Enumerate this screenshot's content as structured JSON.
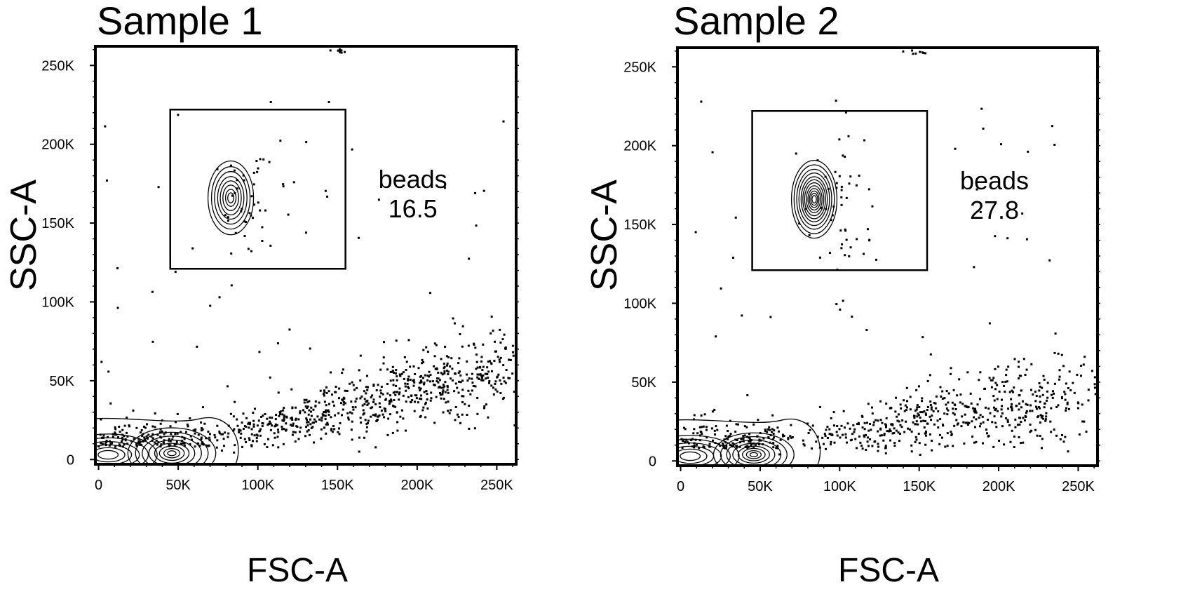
{
  "chart_data": [
    {
      "type": "scatter",
      "title": "Sample 1",
      "xlabel": "FSC-A",
      "ylabel": "SSC-A",
      "xlim": [
        -2000,
        262144
      ],
      "ylim": [
        -3000,
        262144
      ],
      "x_ticks": [
        {
          "value": 0,
          "label": "0"
        },
        {
          "value": 50000,
          "label": "50K"
        },
        {
          "value": 100000,
          "label": "100K"
        },
        {
          "value": 150000,
          "label": "150K"
        },
        {
          "value": 200000,
          "label": "200K"
        },
        {
          "value": 250000,
          "label": "250K"
        }
      ],
      "y_ticks": [
        {
          "value": 0,
          "label": "0"
        },
        {
          "value": 50000,
          "label": "50K"
        },
        {
          "value": 100000,
          "label": "100K"
        },
        {
          "value": 150000,
          "label": "150K"
        },
        {
          "value": 200000,
          "label": "200K"
        },
        {
          "value": 250000,
          "label": "250K"
        }
      ],
      "gate": {
        "name": "beads",
        "percent": "16.5",
        "x_range": [
          45000,
          155000
        ],
        "y_range": [
          121000,
          222000
        ]
      },
      "bead_population": {
        "center": [
          83000,
          166000
        ],
        "sd": [
          5500,
          9000
        ],
        "density": "low"
      },
      "debris_populations": [
        {
          "center": [
            6000,
            3000
          ],
          "sd": [
            14000,
            6000
          ]
        },
        {
          "center": [
            46000,
            4000
          ],
          "sd": [
            12000,
            7000
          ]
        }
      ],
      "scatter_trend": {
        "from": [
          80000,
          15000
        ],
        "to": [
          260000,
          60000
        ]
      },
      "grid": false
    },
    {
      "type": "scatter",
      "title": "Sample 2",
      "xlabel": "FSC-A",
      "ylabel": "SSC-A",
      "xlim": [
        -2000,
        262144
      ],
      "ylim": [
        -3000,
        262144
      ],
      "x_ticks": [
        {
          "value": 0,
          "label": "0"
        },
        {
          "value": 50000,
          "label": "50K"
        },
        {
          "value": 100000,
          "label": "100K"
        },
        {
          "value": 150000,
          "label": "150K"
        },
        {
          "value": 200000,
          "label": "200K"
        },
        {
          "value": 250000,
          "label": "250K"
        }
      ],
      "y_ticks": [
        {
          "value": 0,
          "label": "0"
        },
        {
          "value": 50000,
          "label": "50K"
        },
        {
          "value": 100000,
          "label": "100K"
        },
        {
          "value": 150000,
          "label": "150K"
        },
        {
          "value": 200000,
          "label": "200K"
        },
        {
          "value": 250000,
          "label": "250K"
        }
      ],
      "gate": {
        "name": "beads",
        "percent": "27.8",
        "x_range": [
          45000,
          155000
        ],
        "y_range": [
          121000,
          222000
        ]
      },
      "bead_population": {
        "center": [
          84000,
          166000
        ],
        "sd": [
          5500,
          9500
        ],
        "density": "high"
      },
      "debris_populations": [
        {
          "center": [
            6000,
            3000
          ],
          "sd": [
            14000,
            6000
          ]
        },
        {
          "center": [
            46000,
            4000
          ],
          "sd": [
            11000,
            6000
          ]
        }
      ],
      "scatter_trend": {
        "from": [
          80000,
          14000
        ],
        "to": [
          250000,
          40000
        ]
      },
      "grid": false
    }
  ]
}
